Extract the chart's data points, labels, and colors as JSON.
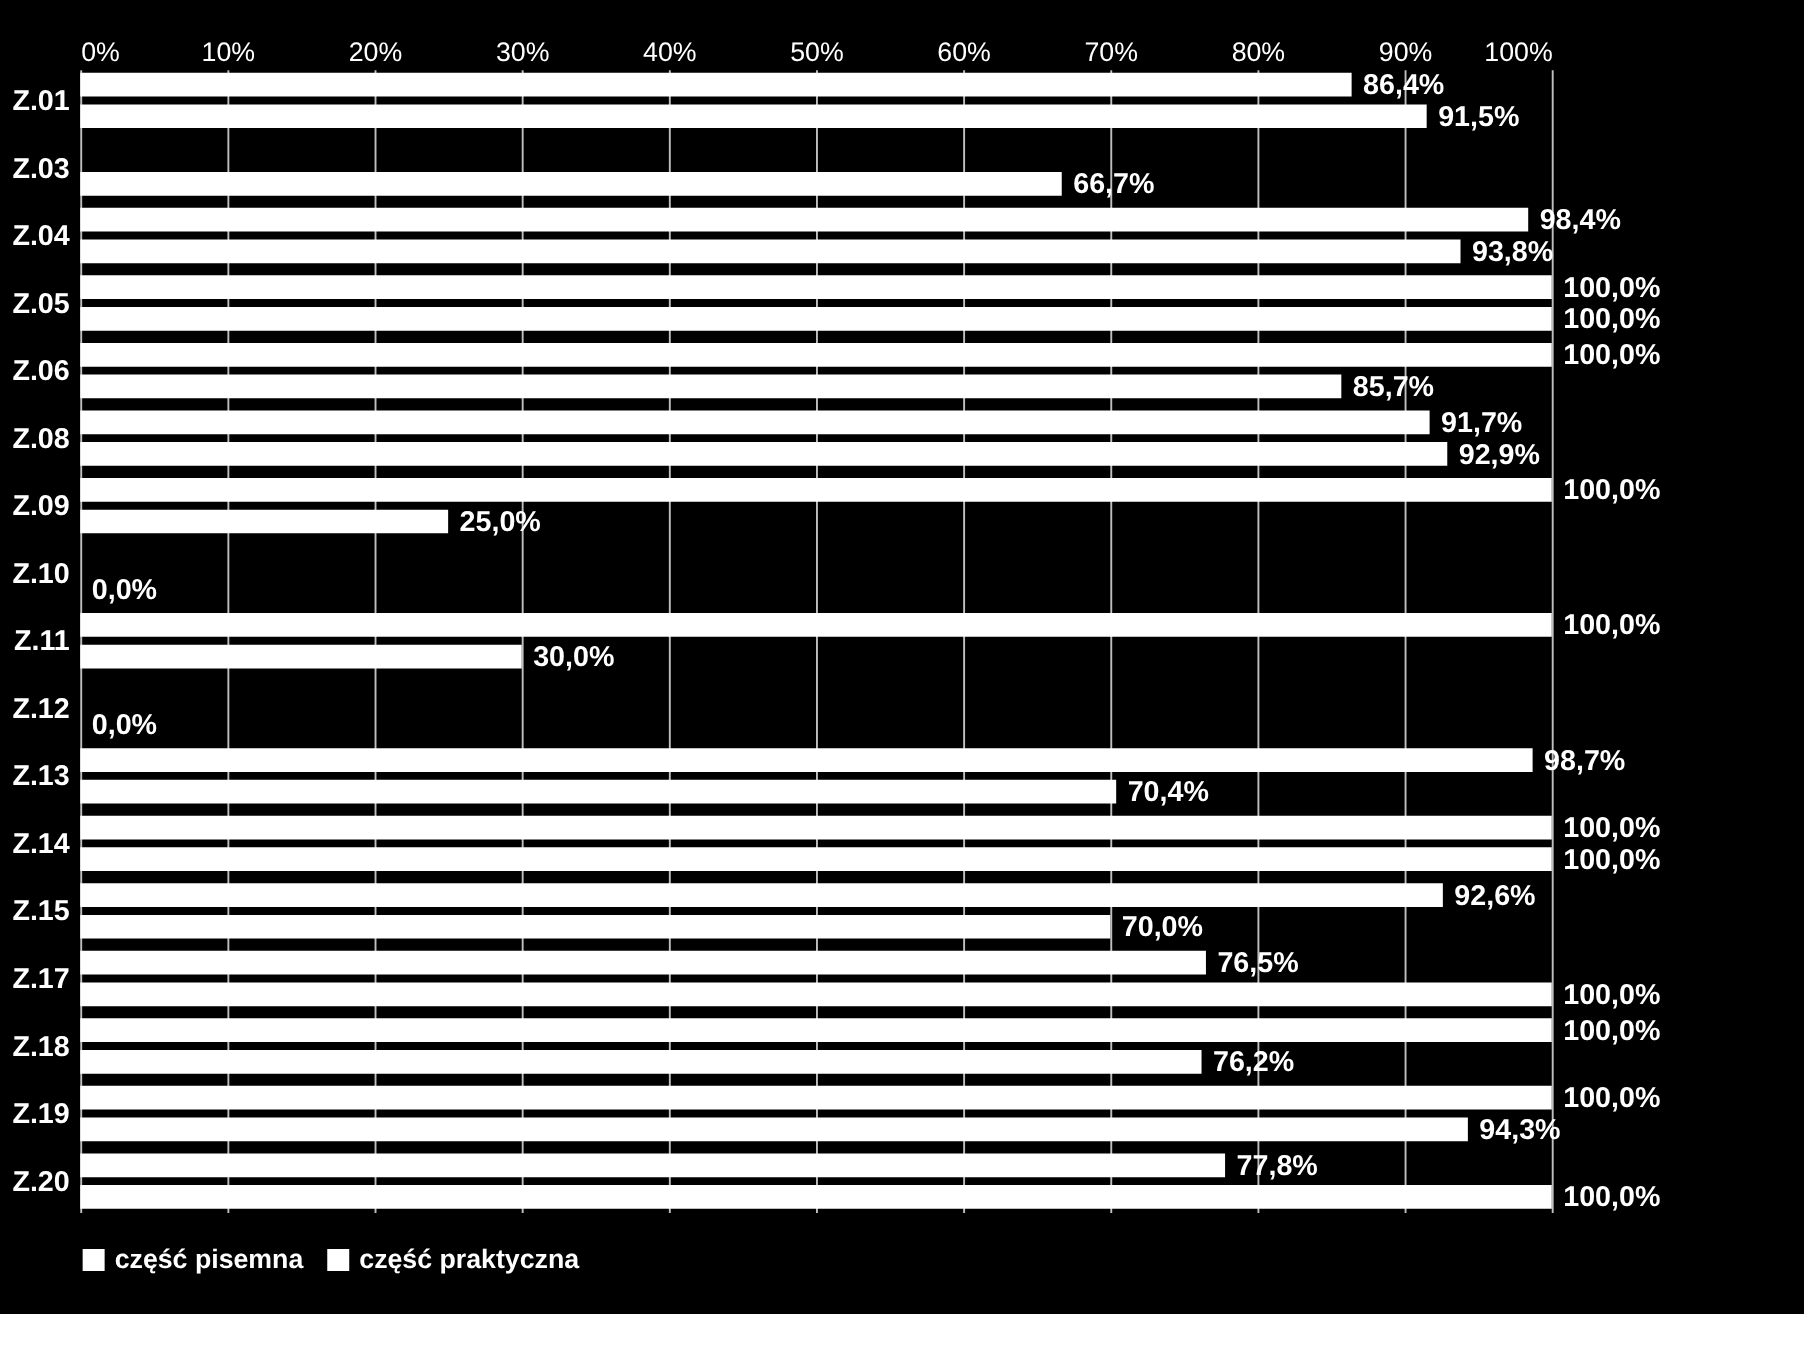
{
  "chart_data": {
    "type": "bar",
    "orientation": "horizontal",
    "categories": [
      "Z.01",
      "Z.03",
      "Z.04",
      "Z.05",
      "Z.06",
      "Z.08",
      "Z.09",
      "Z.10",
      "Z.11",
      "Z.12",
      "Z.13",
      "Z.14",
      "Z.15",
      "Z.17",
      "Z.18",
      "Z.19",
      "Z.20"
    ],
    "series": [
      {
        "name": "część pisemna",
        "color": "#ffffff",
        "values": [
          86.4,
          null,
          98.4,
          100,
          100,
          91.7,
          100,
          null,
          100,
          null,
          98.7,
          100,
          92.6,
          76.5,
          100,
          100,
          77.8
        ],
        "value_labels": [
          "86,4%",
          null,
          "98,4%",
          "100,0%",
          "100,0%",
          "91,7%",
          "100,0%",
          null,
          "100,0%",
          null,
          "98,7%",
          "100,0%",
          "92,6%",
          "76,5%",
          "100,0%",
          "100,0%",
          "77,8%"
        ]
      },
      {
        "name": "część praktyczna",
        "color": "#ffffff",
        "values": [
          91.5,
          66.7,
          93.8,
          100,
          85.7,
          92.9,
          25.0,
          0.0,
          30.0,
          0.0,
          70.4,
          100,
          70.0,
          100,
          76.2,
          94.3,
          100
        ],
        "value_labels": [
          "91,5%",
          "66,7%",
          "93,8%",
          "100,0%",
          "85,7%",
          "92,9%",
          "25,0%",
          "0,0%",
          "30,0%",
          "0,0%",
          "70,4%",
          "100,0%",
          "70,0%",
          "100,0%",
          "76,2%",
          "94,3%",
          "100,0%"
        ]
      }
    ],
    "xlim": [
      0,
      100
    ],
    "xticks": [
      {
        "value": 0,
        "label": "0%"
      },
      {
        "value": 10,
        "label": "10%"
      },
      {
        "value": 20,
        "label": "20%"
      },
      {
        "value": 30,
        "label": "30%"
      },
      {
        "value": 40,
        "label": "40%"
      },
      {
        "value": 50,
        "label": "50%"
      },
      {
        "value": 60,
        "label": "60%"
      },
      {
        "value": 70,
        "label": "70%"
      },
      {
        "value": 80,
        "label": "80%"
      },
      {
        "value": 90,
        "label": "90%"
      },
      {
        "value": 100,
        "label": "100%"
      }
    ],
    "grid": "x",
    "legend": "bottom"
  }
}
